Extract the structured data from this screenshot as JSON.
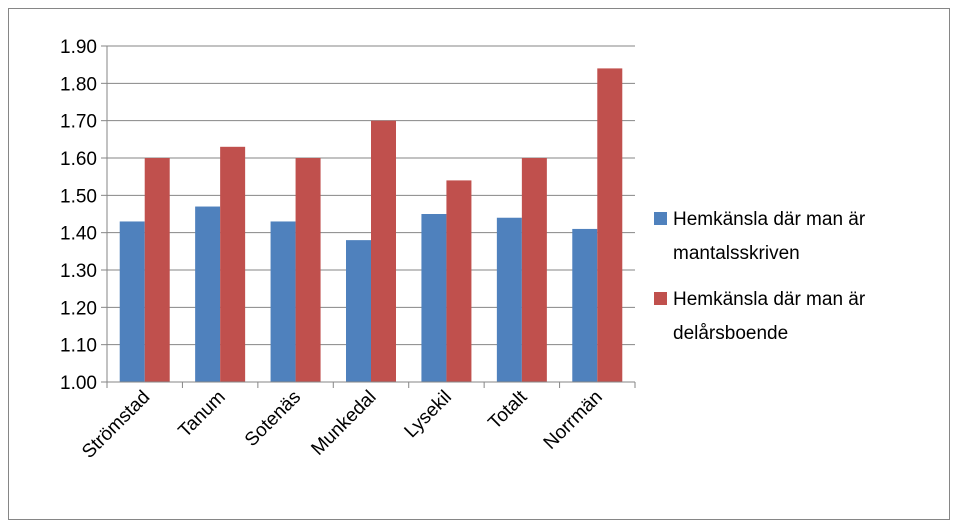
{
  "chart_data": {
    "type": "bar",
    "categories": [
      "Strömstad",
      "Tanum",
      "Sotenäs",
      "Munkedal",
      "Lysekil",
      "Totalt",
      "Norrmän"
    ],
    "series": [
      {
        "name": "Hemkänsla där man är mantalsskriven",
        "legend_lines": [
          "Hemkänsla där man är",
          "mantalsskriven"
        ],
        "color": "#4F81BD",
        "values": [
          1.43,
          1.47,
          1.43,
          1.38,
          1.45,
          1.44,
          1.41
        ]
      },
      {
        "name": "Hemkänsla där man är delårsboende",
        "legend_lines": [
          "Hemkänsla där man är",
          "delårsboende"
        ],
        "color": "#C0504D",
        "values": [
          1.6,
          1.63,
          1.6,
          1.7,
          1.54,
          1.6,
          1.84
        ]
      }
    ],
    "ylim": [
      1.0,
      1.9
    ],
    "yticks": [
      "1.00",
      "1.10",
      "1.20",
      "1.30",
      "1.40",
      "1.50",
      "1.60",
      "1.70",
      "1.80",
      "1.90"
    ],
    "grid": true,
    "legend_position": "right",
    "title": "",
    "xlabel": "",
    "ylabel": ""
  }
}
